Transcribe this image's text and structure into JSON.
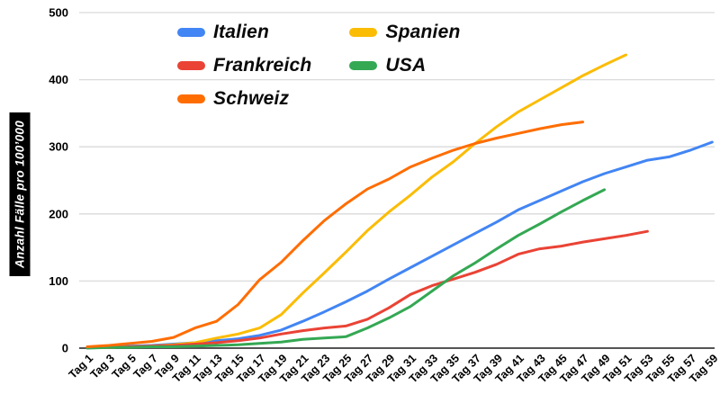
{
  "y_axis": {
    "title": "Anzahl Fälle pro 100’000",
    "ticks": [
      0,
      100,
      200,
      300,
      400,
      500
    ]
  },
  "legend": {
    "columns": [
      [
        {
          "label": "Italien",
          "color": "#4285F4"
        },
        {
          "label": "Frankreich",
          "color": "#EA4335"
        },
        {
          "label": "Schweiz",
          "color": "#FF6D01"
        }
      ],
      [
        {
          "label": "Spanien",
          "color": "#FBBC04"
        },
        {
          "label": "USA",
          "color": "#34A853"
        }
      ]
    ]
  },
  "chart_data": {
    "type": "line",
    "title": "",
    "xlabel": "",
    "ylabel": "Anzahl Fälle pro 100’000",
    "ylim": [
      0,
      500
    ],
    "grid": true,
    "legend_position": "top",
    "grid_color": "#dadada",
    "axis_color": "#555555",
    "categories": [
      "Tag 1",
      "Tag 3",
      "Tag 5",
      "Tag 7",
      "Tag 9",
      "Tag 11",
      "Tag 13",
      "Tag 15",
      "Tag 17",
      "Tag 19",
      "Tag 21",
      "Tag 23",
      "Tag 25",
      "Tag 27",
      "Tag 29",
      "Tag 31",
      "Tag 33",
      "Tag 35",
      "Tag 37",
      "Tag 39",
      "Tag 41",
      "Tag 43",
      "Tag 45",
      "Tag 47",
      "Tag 49",
      "Tag 51",
      "Tag 53",
      "Tag 55",
      "Tag 57",
      "Tag 59"
    ],
    "series": [
      {
        "name": "Italien",
        "color": "#4285F4",
        "values": [
          1,
          2,
          3,
          4,
          6,
          8,
          11,
          14,
          19,
          27,
          40,
          54,
          69,
          85,
          103,
          120,
          137,
          154,
          171,
          188,
          206,
          220,
          234,
          248,
          260,
          270,
          280,
          285,
          295,
          307
        ]
      },
      {
        "name": "Spanien",
        "color": "#FBBC04",
        "values": [
          1,
          1,
          2,
          3,
          5,
          8,
          15,
          21,
          30,
          50,
          82,
          112,
          143,
          175,
          203,
          228,
          255,
          278,
          305,
          330,
          352,
          370,
          388,
          406,
          422,
          437
        ]
      },
      {
        "name": "Frankreich",
        "color": "#EA4335",
        "values": [
          1,
          1,
          2,
          3,
          4,
          6,
          8,
          11,
          15,
          21,
          26,
          30,
          33,
          43,
          60,
          80,
          93,
          103,
          113,
          125,
          140,
          148,
          152,
          158,
          163,
          168,
          174
        ]
      },
      {
        "name": "USA",
        "color": "#34A853",
        "values": [
          0,
          1,
          1,
          2,
          2,
          3,
          4,
          5,
          7,
          9,
          13,
          15,
          17,
          30,
          45,
          62,
          85,
          108,
          127,
          148,
          168,
          185,
          203,
          220,
          236
        ]
      },
      {
        "name": "Schweiz",
        "color": "#FF6D01",
        "values": [
          2,
          4,
          7,
          10,
          16,
          30,
          40,
          65,
          102,
          128,
          160,
          190,
          215,
          237,
          252,
          270,
          283,
          295,
          305,
          313,
          320,
          327,
          333,
          337
        ]
      }
    ]
  }
}
